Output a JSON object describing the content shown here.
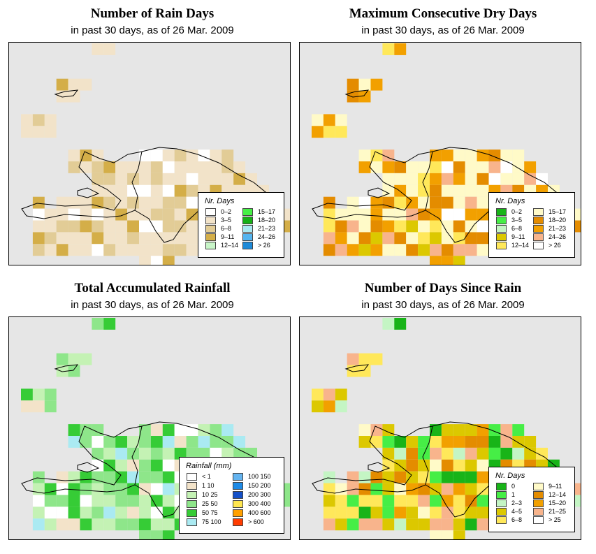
{
  "panels": [
    {
      "title": "Number of Rain Days",
      "subtitle": "in past 30 days, as of  26 Mar. 2009",
      "legend_title": "Nr. Days",
      "legend": [
        {
          "label": "0–2",
          "color": "#ffffff"
        },
        {
          "label": "3–5",
          "color": "#f2e3c9"
        },
        {
          "label": "6–8",
          "color": "#e2cc96"
        },
        {
          "label": "9–11",
          "color": "#d4ae48"
        },
        {
          "label": "12–14",
          "color": "#c8f5c8"
        },
        {
          "label": "15–17",
          "color": "#46f046"
        },
        {
          "label": "18–20",
          "color": "#16b016"
        },
        {
          "label": "21–23",
          "color": "#aaeaf2"
        },
        {
          "label": "24–26",
          "color": "#55b5f0"
        },
        {
          "label": "> 26",
          "color": "#1e8ad8"
        }
      ]
    },
    {
      "title": "Maximum Consecutive Dry Days",
      "subtitle": "in past 30 days, as of  26 Mar. 2009",
      "legend_title": "Nr. Days",
      "legend": [
        {
          "label": "0–2",
          "color": "#18b418"
        },
        {
          "label": "3–5",
          "color": "#46ee46"
        },
        {
          "label": "6–8",
          "color": "#c4f5c4"
        },
        {
          "label": "9–11",
          "color": "#dcc800"
        },
        {
          "label": "12–14",
          "color": "#ffe85a"
        },
        {
          "label": "15–17",
          "color": "#fffac8"
        },
        {
          "label": "18–20",
          "color": "#e48c00"
        },
        {
          "label": "21–23",
          "color": "#f2a000"
        },
        {
          "label": "24–26",
          "color": "#f8b48c"
        },
        {
          "label": "> 26",
          "color": "#ffffff"
        }
      ]
    },
    {
      "title": "Total Accumulated Rainfall",
      "subtitle": "in past 30 days, as of  26 Mar. 2009",
      "legend_title": "Rainfall (mm)",
      "legend": [
        {
          "label": "< 1",
          "color": "#ffffff"
        },
        {
          "label": "1    10",
          "color": "#f3e3c9"
        },
        {
          "label": "10    25",
          "color": "#c4f2b4"
        },
        {
          "label": "25    50",
          "color": "#8ee68a"
        },
        {
          "label": "50    75",
          "color": "#36cc36"
        },
        {
          "label": "75  100",
          "color": "#aaeaf2"
        },
        {
          "label": "100  150",
          "color": "#64b4f0"
        },
        {
          "label": "150  200",
          "color": "#1e8ae6"
        },
        {
          "label": "200  300",
          "color": "#1450c8"
        },
        {
          "label": "300  400",
          "color": "#ffe650"
        },
        {
          "label": "400  600",
          "color": "#ffa000"
        },
        {
          "label": "> 600",
          "color": "#ff3c00"
        }
      ]
    },
    {
      "title": "Number of Days Since Rain",
      "subtitle": "in past 30 days, as of  26 Mar. 2009",
      "legend_title": "Nr. Days",
      "legend": [
        {
          "label": "0",
          "color": "#18b418"
        },
        {
          "label": "1",
          "color": "#46ee46"
        },
        {
          "label": "2–3",
          "color": "#c4f5c4"
        },
        {
          "label": "4–5",
          "color": "#dcc800"
        },
        {
          "label": "6–8",
          "color": "#ffe85a"
        },
        {
          "label": "9–11",
          "color": "#fffac8"
        },
        {
          "label": "12–14",
          "color": "#e48c00"
        },
        {
          "label": "15–20",
          "color": "#f2a000"
        },
        {
          "label": "21–25",
          "color": "#f8b48c"
        },
        {
          "label": "> 25",
          "color": "#ffffff"
        }
      ]
    }
  ]
}
